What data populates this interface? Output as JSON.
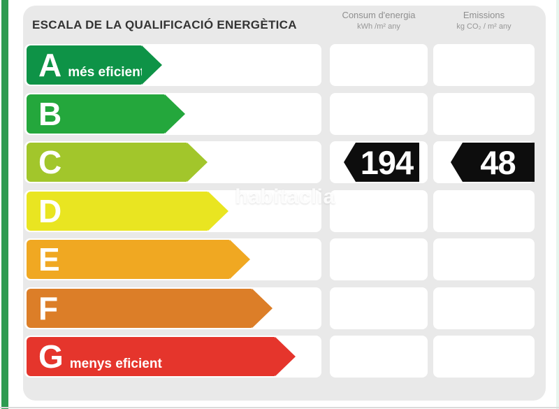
{
  "page": {
    "accent_bar_color": "#2E9B51",
    "card_background": "#E9E9E9",
    "right_edge_color": "#E8F5EE",
    "bottom_edge_color": "#DBDBDB"
  },
  "header": {
    "title": "ESCALA DE LA QUALIFICACIÓ ENERGÈTICA",
    "columns": [
      {
        "title": "Consum d'energia",
        "unit": "kWh /m² any"
      },
      {
        "title": "Emissions",
        "unit": "kg CO₂ / m² any"
      }
    ]
  },
  "watermark": "habitaclia",
  "scale": {
    "bands": [
      {
        "letter": "A",
        "label": "més eficient",
        "color": "#0E9347",
        "arrow_width": 194
      },
      {
        "letter": "B",
        "label": "",
        "color": "#24A73C",
        "arrow_width": 227
      },
      {
        "letter": "C",
        "label": "",
        "color": "#A2C62B",
        "arrow_width": 259
      },
      {
        "letter": "D",
        "label": "",
        "color": "#E9E521",
        "arrow_width": 289
      },
      {
        "letter": "E",
        "label": "",
        "color": "#F0A822",
        "arrow_width": 320
      },
      {
        "letter": "F",
        "label": "",
        "color": "#DC7E28",
        "arrow_width": 352
      },
      {
        "letter": "G",
        "label": "menys eficient",
        "color": "#E5352C",
        "arrow_width": 385
      }
    ]
  },
  "rating": {
    "band": "C",
    "consum_value": "194",
    "emissions_value": "48",
    "badge_color": "#0D0D0D"
  },
  "chart_data": {
    "type": "table",
    "title": "ESCALA DE LA QUALIFICACIÓ ENERGÈTICA",
    "columns": [
      "Consum d'energia (kWh /m² any)",
      "Emissions (kg CO₂ / m² any)"
    ],
    "scale_letters": [
      "A",
      "B",
      "C",
      "D",
      "E",
      "F",
      "G"
    ],
    "scale_colors": [
      "#0E9347",
      "#24A73C",
      "#A2C62B",
      "#E9E521",
      "#F0A822",
      "#DC7E28",
      "#E5352C"
    ],
    "scale_annotations": {
      "A": "més eficient",
      "G": "menys eficient"
    },
    "rated_band": "C",
    "values": [
      194,
      48
    ]
  }
}
